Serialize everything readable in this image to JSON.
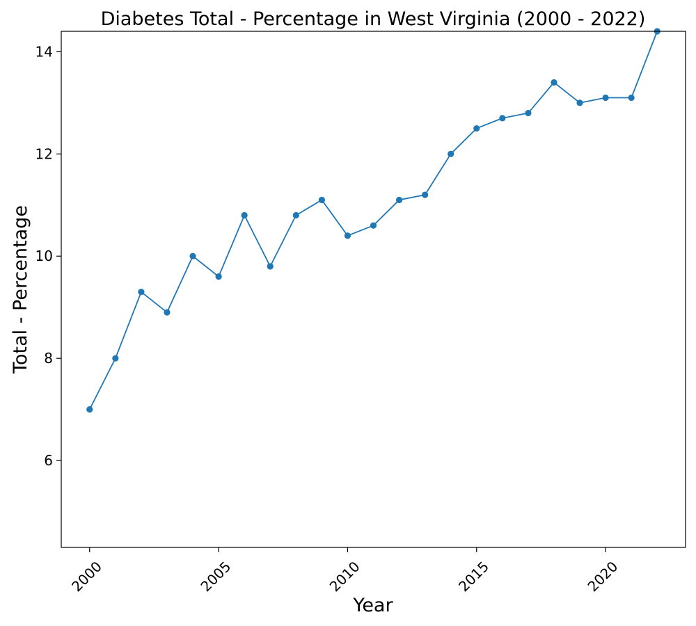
{
  "chart_data": {
    "type": "line",
    "title": "Diabetes Total - Percentage in West Virginia (2000 - 2022)",
    "xlabel": "Year",
    "ylabel": "Total - Percentage",
    "x": [
      2000,
      2001,
      2002,
      2003,
      2004,
      2005,
      2006,
      2007,
      2008,
      2009,
      2010,
      2011,
      2012,
      2013,
      2014,
      2015,
      2016,
      2017,
      2018,
      2019,
      2020,
      2021,
      2022
    ],
    "series": [
      {
        "values": [
          7.0,
          8.0,
          9.3,
          8.9,
          10.0,
          9.6,
          10.8,
          9.8,
          10.8,
          11.1,
          10.4,
          10.6,
          11.1,
          11.2,
          12.0,
          12.5,
          12.7,
          12.8,
          13.4,
          13.0,
          13.1,
          13.1,
          14.4
        ],
        "color": "#1f77b4",
        "marker": "circle"
      }
    ],
    "xlim": [
      1998.9,
      2023.1
    ],
    "ylim": [
      4.3,
      14.4
    ],
    "xticks": [
      "2000",
      "2005",
      "2010",
      "2015",
      "2020"
    ],
    "yticks": [
      "6",
      "8",
      "10",
      "12",
      "14"
    ],
    "grid": false,
    "legend": "none"
  }
}
